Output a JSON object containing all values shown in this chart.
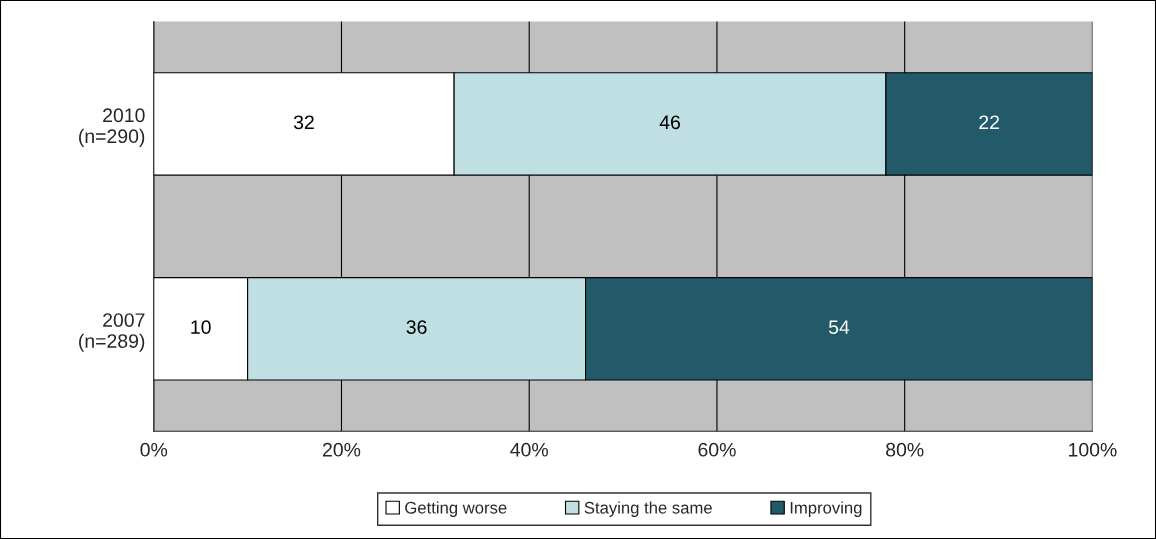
{
  "chart_data": {
    "type": "bar",
    "orientation": "horizontal",
    "stacked": true,
    "categories": [
      "2010\n(n=290)",
      "2007\n(n=289)"
    ],
    "series": [
      {
        "name": "Getting worse",
        "color": "#ffffff",
        "values": [
          32,
          10
        ]
      },
      {
        "name": "Staying the same",
        "color": "#c0dfe2",
        "values": [
          46,
          36
        ]
      },
      {
        "name": "Improving",
        "color": "#235a6a",
        "values": [
          22,
          54
        ]
      }
    ],
    "xlim": [
      0,
      100
    ],
    "xticks": [
      {
        "value": 0,
        "label": "0%"
      },
      {
        "value": 20,
        "label": "20%"
      },
      {
        "value": 40,
        "label": "40%"
      },
      {
        "value": 60,
        "label": "60%"
      },
      {
        "value": 80,
        "label": "80%"
      },
      {
        "value": 100,
        "label": "100%"
      }
    ],
    "grid": "x",
    "legend": "bottom",
    "data_labels": true
  }
}
